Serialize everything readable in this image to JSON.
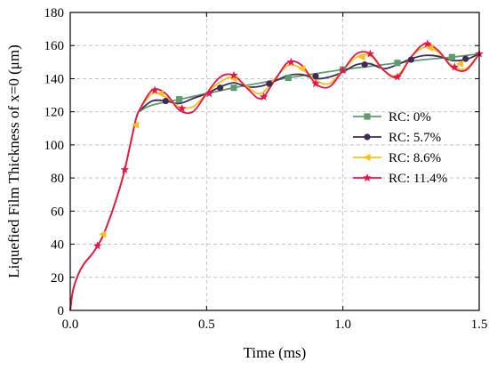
{
  "chart_data": {
    "type": "line",
    "xlabel": "Time (ms)",
    "ylabel": "Liquefied Film Thickness of x=0 (μm)",
    "xlim": [
      0,
      1.5
    ],
    "ylim": [
      0,
      180
    ],
    "x_ticks": [
      0.0,
      0.5,
      1.0,
      1.5
    ],
    "x_tick_labels": [
      "0.0",
      "0.5",
      "1.0",
      "1.5"
    ],
    "y_ticks": [
      0,
      20,
      40,
      60,
      80,
      100,
      120,
      140,
      160,
      180
    ],
    "y_tick_labels": [
      "0",
      "20",
      "40",
      "60",
      "80",
      "100",
      "120",
      "140",
      "160",
      "180"
    ],
    "grid": true,
    "legend_position": "right",
    "shared_curve": {
      "x": [
        0,
        0.01,
        0.03,
        0.05,
        0.08,
        0.1,
        0.12,
        0.15,
        0.18,
        0.2,
        0.22,
        0.24,
        0.25
      ],
      "y": [
        0,
        12,
        22,
        28,
        34,
        39,
        45,
        58,
        73,
        85,
        100,
        115,
        120
      ]
    },
    "series": [
      {
        "name": "RC: 0%",
        "color": "#5e9c6e",
        "marker": "square",
        "x": [
          0.25,
          0.3,
          0.4,
          0.5,
          0.6,
          0.7,
          0.8,
          0.9,
          1.0,
          1.1,
          1.2,
          1.3,
          1.4,
          1.5
        ],
        "y": [
          120,
          124,
          127.5,
          131,
          134.5,
          137.5,
          140.5,
          143,
          145.5,
          147.5,
          149.5,
          151.5,
          153,
          155
        ],
        "marker_x": [
          0.4,
          0.6,
          0.8,
          1.0,
          1.2,
          1.4
        ],
        "marker_y": [
          127.5,
          134.5,
          140.5,
          145.5,
          149.5,
          153
        ]
      },
      {
        "name": "RC: 5.7%",
        "color": "#3f2a5a",
        "marker": "circle",
        "x": [
          0.25,
          0.3,
          0.35,
          0.4,
          0.45,
          0.5,
          0.55,
          0.6,
          0.65,
          0.7,
          0.75,
          0.8,
          0.85,
          0.9,
          0.95,
          1.0,
          1.05,
          1.1,
          1.15,
          1.2,
          1.25,
          1.3,
          1.35,
          1.4,
          1.45,
          1.5
        ],
        "y": [
          120,
          126.5,
          126.5,
          125,
          128,
          131,
          135,
          137.5,
          135,
          135.5,
          138.5,
          142,
          142.5,
          140,
          141,
          144,
          148.5,
          149,
          146,
          148.5,
          152,
          154,
          153.5,
          151,
          151.5,
          155
        ],
        "marker_x": [
          0.35,
          0.55,
          0.73,
          0.9,
          1.08,
          1.25,
          1.45
        ],
        "marker_y": [
          126.5,
          134.5,
          137,
          141.5,
          148.5,
          151.5,
          152
        ]
      },
      {
        "name": "RC: 8.6%",
        "color": "#f5c020",
        "marker": "triangle-left",
        "x": [
          0.25,
          0.3,
          0.35,
          0.4,
          0.45,
          0.5,
          0.55,
          0.6,
          0.65,
          0.7,
          0.75,
          0.8,
          0.85,
          0.9,
          0.95,
          1.0,
          1.05,
          1.1,
          1.15,
          1.2,
          1.25,
          1.3,
          1.35,
          1.4,
          1.45,
          1.5
        ],
        "y": [
          120,
          131,
          129,
          123,
          123,
          131,
          138,
          141,
          135,
          131,
          140,
          148,
          146,
          139,
          137,
          145,
          153,
          154,
          145,
          142,
          153,
          159,
          156,
          148,
          146,
          155
        ],
        "marker_x": [
          0.12,
          0.24,
          0.33,
          0.6,
          0.85,
          1.07,
          1.32,
          1.43
        ],
        "marker_y": [
          46,
          112,
          131,
          140,
          146,
          153,
          158.5,
          149
        ]
      },
      {
        "name": "RC: 11.4%",
        "color": "#e8134b",
        "marker": "star",
        "x": [
          0.25,
          0.3,
          0.35,
          0.4,
          0.45,
          0.5,
          0.55,
          0.6,
          0.65,
          0.7,
          0.75,
          0.8,
          0.85,
          0.9,
          0.95,
          1.0,
          1.05,
          1.1,
          1.15,
          1.2,
          1.25,
          1.3,
          1.35,
          1.4,
          1.45,
          1.5
        ],
        "y": [
          120,
          133,
          131,
          121,
          120,
          131,
          141,
          142,
          134,
          128,
          139,
          150,
          148,
          137,
          135,
          145,
          155,
          155,
          145,
          141,
          153,
          161,
          157,
          147,
          145,
          155
        ],
        "marker_x": [
          0.1,
          0.2,
          0.31,
          0.41,
          0.51,
          0.6,
          0.71,
          0.81,
          0.9,
          1.0,
          1.1,
          1.2,
          1.31,
          1.41,
          1.5
        ],
        "marker_y": [
          39,
          85,
          133,
          122,
          131,
          142,
          129,
          150,
          137,
          145,
          155,
          141,
          161,
          147,
          155
        ]
      }
    ]
  }
}
